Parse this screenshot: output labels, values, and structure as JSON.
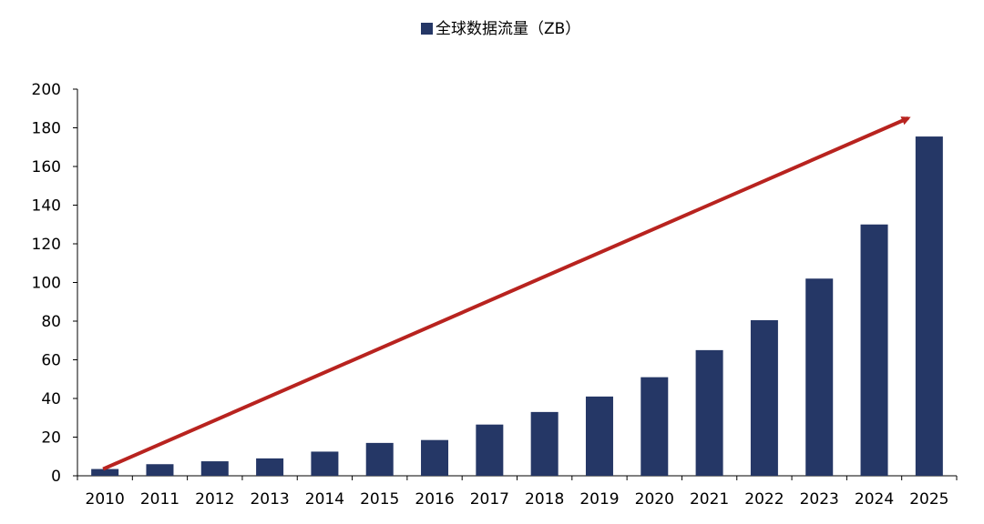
{
  "chart_data": {
    "type": "bar",
    "categories": [
      "2010",
      "2011",
      "2012",
      "2013",
      "2014",
      "2015",
      "2016",
      "2017",
      "2018",
      "2019",
      "2020",
      "2021",
      "2022",
      "2023",
      "2024",
      "2025"
    ],
    "series": [
      {
        "name": "全球数据流量（ZB）",
        "values": [
          3.5,
          6,
          7.5,
          9,
          12.5,
          17,
          18.5,
          26.5,
          33,
          41,
          51,
          65,
          80.5,
          102,
          130,
          175.5
        ]
      }
    ],
    "ylim": [
      0,
      200
    ],
    "yticks": [
      0,
      20,
      40,
      60,
      80,
      100,
      120,
      140,
      160,
      180,
      200
    ],
    "legend_position": "top-center",
    "grid": false,
    "trend_arrow": {
      "from": 3.5,
      "to": 185,
      "direction": "up-right"
    },
    "colors": {
      "bar": "#253766",
      "arrow": "#b8231f",
      "axis": "#000000"
    }
  }
}
